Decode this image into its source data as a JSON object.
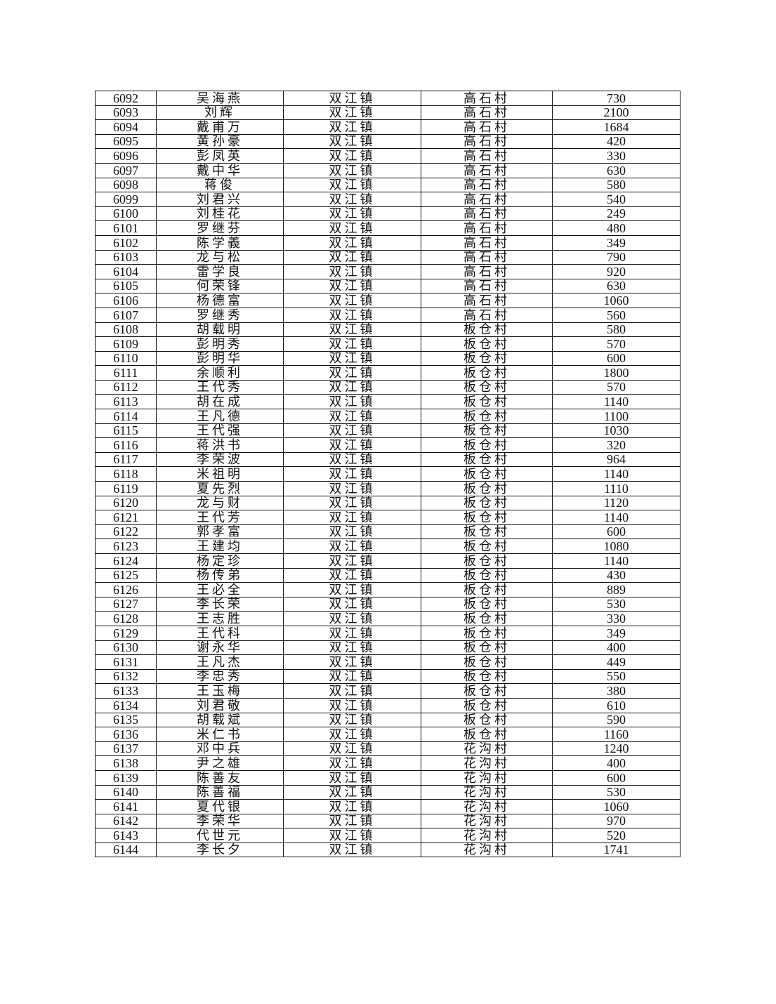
{
  "table": {
    "rows": [
      [
        "6092",
        "吴海燕",
        "双江镇",
        "高石村",
        "730"
      ],
      [
        "6093",
        "刘辉",
        "双江镇",
        "高石村",
        "2100"
      ],
      [
        "6094",
        "戴甫万",
        "双江镇",
        "高石村",
        "1684"
      ],
      [
        "6095",
        "黄孙豪",
        "双江镇",
        "高石村",
        "420"
      ],
      [
        "6096",
        "彭凤英",
        "双江镇",
        "高石村",
        "330"
      ],
      [
        "6097",
        "戴中华",
        "双江镇",
        "高石村",
        "630"
      ],
      [
        "6098",
        "蒋俊",
        "双江镇",
        "高石村",
        "580"
      ],
      [
        "6099",
        "刘君兴",
        "双江镇",
        "高石村",
        "540"
      ],
      [
        "6100",
        "刘桂花",
        "双江镇",
        "高石村",
        "249"
      ],
      [
        "6101",
        "罗继芬",
        "双江镇",
        "高石村",
        "480"
      ],
      [
        "6102",
        "陈学義",
        "双江镇",
        "高石村",
        "349"
      ],
      [
        "6103",
        "龙与松",
        "双江镇",
        "高石村",
        "790"
      ],
      [
        "6104",
        "雷学良",
        "双江镇",
        "高石村",
        "920"
      ],
      [
        "6105",
        "何荣锋",
        "双江镇",
        "高石村",
        "630"
      ],
      [
        "6106",
        "杨德富",
        "双江镇",
        "高石村",
        "1060"
      ],
      [
        "6107",
        "罗继秀",
        "双江镇",
        "高石村",
        "560"
      ],
      [
        "6108",
        "胡载明",
        "双江镇",
        "板仓村",
        "580"
      ],
      [
        "6109",
        "彭明秀",
        "双江镇",
        "板仓村",
        "570"
      ],
      [
        "6110",
        "彭明华",
        "双江镇",
        "板仓村",
        "600"
      ],
      [
        "6111",
        "余顺利",
        "双江镇",
        "板仓村",
        "1800"
      ],
      [
        "6112",
        "王代秀",
        "双江镇",
        "板仓村",
        "570"
      ],
      [
        "6113",
        "胡在成",
        "双江镇",
        "板仓村",
        "1140"
      ],
      [
        "6114",
        "王凡德",
        "双江镇",
        "板仓村",
        "1100"
      ],
      [
        "6115",
        "王代强",
        "双江镇",
        "板仓村",
        "1030"
      ],
      [
        "6116",
        "蒋洪书",
        "双江镇",
        "板仓村",
        "320"
      ],
      [
        "6117",
        "李荣波",
        "双江镇",
        "板仓村",
        "964"
      ],
      [
        "6118",
        "米祖明",
        "双江镇",
        "板仓村",
        "1140"
      ],
      [
        "6119",
        "夏先烈",
        "双江镇",
        "板仓村",
        "1110"
      ],
      [
        "6120",
        "龙与财",
        "双江镇",
        "板仓村",
        "1120"
      ],
      [
        "6121",
        "王代芳",
        "双江镇",
        "板仓村",
        "1140"
      ],
      [
        "6122",
        "郭孝富",
        "双江镇",
        "板仓村",
        "600"
      ],
      [
        "6123",
        "王建均",
        "双江镇",
        "板仓村",
        "1080"
      ],
      [
        "6124",
        "杨定珍",
        "双江镇",
        "板仓村",
        "1140"
      ],
      [
        "6125",
        "杨传弟",
        "双江镇",
        "板仓村",
        "430"
      ],
      [
        "6126",
        "王必全",
        "双江镇",
        "板仓村",
        "889"
      ],
      [
        "6127",
        "李长荣",
        "双江镇",
        "板仓村",
        "530"
      ],
      [
        "6128",
        "王志胜",
        "双江镇",
        "板仓村",
        "330"
      ],
      [
        "6129",
        "王代科",
        "双江镇",
        "板仓村",
        "349"
      ],
      [
        "6130",
        "谢永华",
        "双江镇",
        "板仓村",
        "400"
      ],
      [
        "6131",
        "王凡杰",
        "双江镇",
        "板仓村",
        "449"
      ],
      [
        "6132",
        "李忠秀",
        "双江镇",
        "板仓村",
        "550"
      ],
      [
        "6133",
        "王玉梅",
        "双江镇",
        "板仓村",
        "380"
      ],
      [
        "6134",
        "刘君敬",
        "双江镇",
        "板仓村",
        "610"
      ],
      [
        "6135",
        "胡载斌",
        "双江镇",
        "板仓村",
        "590"
      ],
      [
        "6136",
        "米仁书",
        "双江镇",
        "板仓村",
        "1160"
      ],
      [
        "6137",
        "邓中兵",
        "双江镇",
        "花沟村",
        "1240"
      ],
      [
        "6138",
        "尹之雄",
        "双江镇",
        "花沟村",
        "400"
      ],
      [
        "6139",
        "陈善友",
        "双江镇",
        "花沟村",
        "600"
      ],
      [
        "6140",
        "陈善福",
        "双江镇",
        "花沟村",
        "530"
      ],
      [
        "6141",
        "夏代银",
        "双江镇",
        "花沟村",
        "1060"
      ],
      [
        "6142",
        "李荣华",
        "双江镇",
        "花沟村",
        "970"
      ],
      [
        "6143",
        "代世元",
        "双江镇",
        "花沟村",
        "520"
      ],
      [
        "6144",
        "李长夕",
        "双江镇",
        "花沟村",
        "1741"
      ]
    ]
  }
}
